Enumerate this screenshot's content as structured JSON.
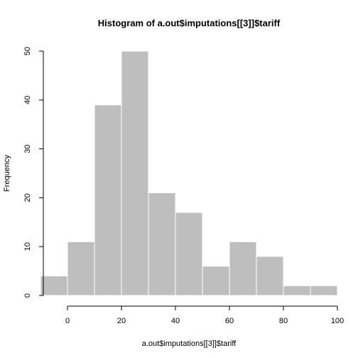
{
  "chart_data": {
    "type": "bar",
    "title": "Histogram of a.out$imputations[[3]]$tariff",
    "xlabel": "a.out$imputations[[3]]$tariff",
    "ylabel": "Frequency",
    "bins": [
      {
        "x0": -10,
        "x1": 0,
        "count": 4
      },
      {
        "x0": 0,
        "x1": 10,
        "count": 11
      },
      {
        "x0": 10,
        "x1": 20,
        "count": 39
      },
      {
        "x0": 20,
        "x1": 30,
        "count": 50
      },
      {
        "x0": 30,
        "x1": 40,
        "count": 21
      },
      {
        "x0": 40,
        "x1": 50,
        "count": 17
      },
      {
        "x0": 50,
        "x1": 60,
        "count": 6
      },
      {
        "x0": 60,
        "x1": 70,
        "count": 11
      },
      {
        "x0": 70,
        "x1": 80,
        "count": 8
      },
      {
        "x0": 80,
        "x1": 90,
        "count": 2
      },
      {
        "x0": 90,
        "x1": 100,
        "count": 2
      }
    ],
    "xlim": [
      -10,
      100
    ],
    "ylim": [
      0,
      50
    ],
    "x_ticks": [
      "0",
      "20",
      "40",
      "60",
      "80",
      "100"
    ],
    "y_ticks": [
      "0",
      "10",
      "20",
      "30",
      "40",
      "50"
    ],
    "bar_color": "#bebebe",
    "bar_border_color": "#ffffff",
    "grid": false,
    "legend": "none"
  }
}
